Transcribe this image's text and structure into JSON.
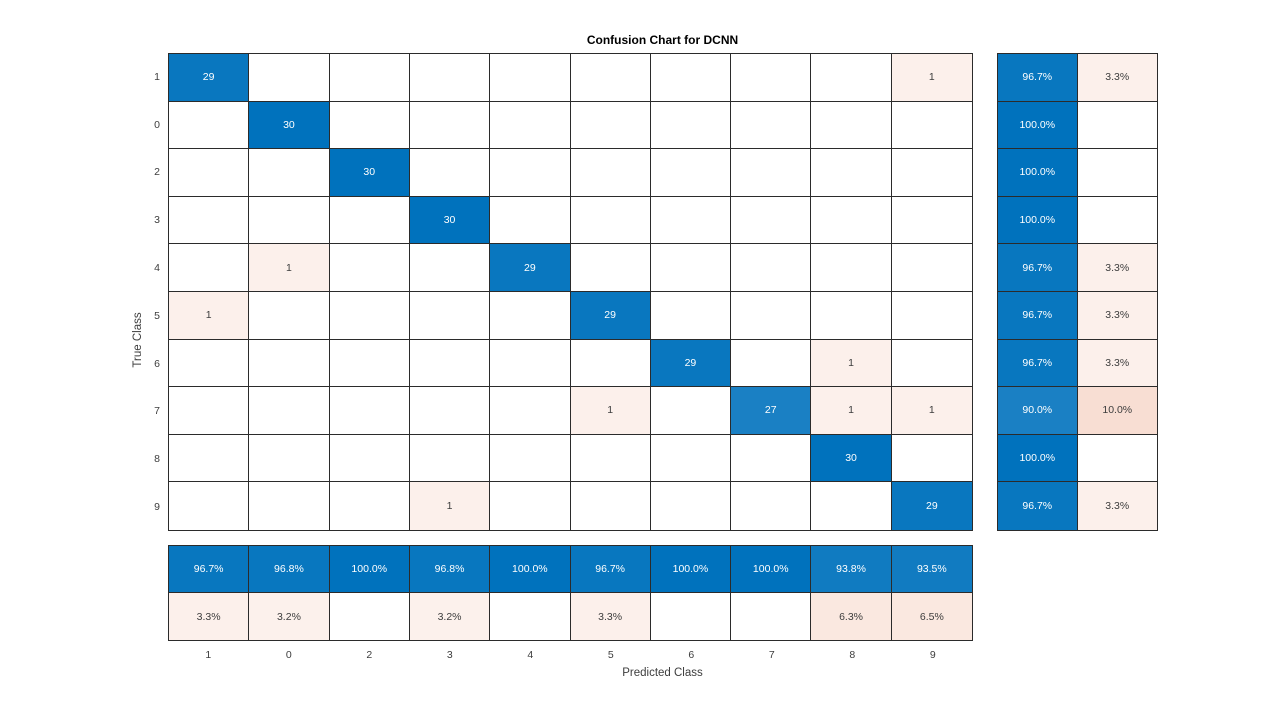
{
  "chart_data": {
    "type": "heatmap",
    "title": "Confusion Chart for DCNN",
    "xlabel": "Predicted Class",
    "ylabel": "True Class",
    "classes": [
      "1",
      "0",
      "2",
      "3",
      "4",
      "5",
      "6",
      "7",
      "8",
      "9"
    ],
    "max_count": 30,
    "matrix": [
      [
        29,
        null,
        null,
        null,
        null,
        null,
        null,
        null,
        null,
        1
      ],
      [
        null,
        30,
        null,
        null,
        null,
        null,
        null,
        null,
        null,
        null
      ],
      [
        null,
        null,
        30,
        null,
        null,
        null,
        null,
        null,
        null,
        null
      ],
      [
        null,
        null,
        null,
        30,
        null,
        null,
        null,
        null,
        null,
        null
      ],
      [
        null,
        1,
        null,
        null,
        29,
        null,
        null,
        null,
        null,
        null
      ],
      [
        1,
        null,
        null,
        null,
        null,
        29,
        null,
        null,
        null,
        null
      ],
      [
        null,
        null,
        null,
        null,
        null,
        null,
        29,
        null,
        1,
        null
      ],
      [
        null,
        null,
        null,
        null,
        null,
        1,
        null,
        27,
        1,
        1
      ],
      [
        null,
        null,
        null,
        null,
        null,
        null,
        null,
        null,
        30,
        null
      ],
      [
        null,
        null,
        null,
        1,
        null,
        null,
        null,
        null,
        null,
        29
      ]
    ],
    "row_summary": [
      {
        "positive": "96.7%",
        "negative": "3.3%"
      },
      {
        "positive": "100.0%",
        "negative": ""
      },
      {
        "positive": "100.0%",
        "negative": ""
      },
      {
        "positive": "100.0%",
        "negative": ""
      },
      {
        "positive": "96.7%",
        "negative": "3.3%"
      },
      {
        "positive": "96.7%",
        "negative": "3.3%"
      },
      {
        "positive": "96.7%",
        "negative": "3.3%"
      },
      {
        "positive": "90.0%",
        "negative": "10.0%"
      },
      {
        "positive": "100.0%",
        "negative": ""
      },
      {
        "positive": "96.7%",
        "negative": "3.3%"
      }
    ],
    "column_summary": [
      {
        "positive": "96.7%",
        "negative": "3.3%"
      },
      {
        "positive": "96.8%",
        "negative": "3.2%"
      },
      {
        "positive": "100.0%",
        "negative": ""
      },
      {
        "positive": "96.8%",
        "negative": "3.2%"
      },
      {
        "positive": "100.0%",
        "negative": ""
      },
      {
        "positive": "96.7%",
        "negative": "3.3%"
      },
      {
        "positive": "100.0%",
        "negative": ""
      },
      {
        "positive": "100.0%",
        "negative": ""
      },
      {
        "positive": "93.8%",
        "negative": "6.3%"
      },
      {
        "positive": "93.5%",
        "negative": "6.5%"
      }
    ],
    "colors": {
      "diagonal_base": "#0072bd",
      "off_diagonal_base": "#d95319",
      "grid_line": "#2b2b2b",
      "text_on_dark": "#ffffff",
      "text_dark": "#3d3d3d",
      "title_color": "#000000",
      "background": "#ffffff"
    }
  }
}
